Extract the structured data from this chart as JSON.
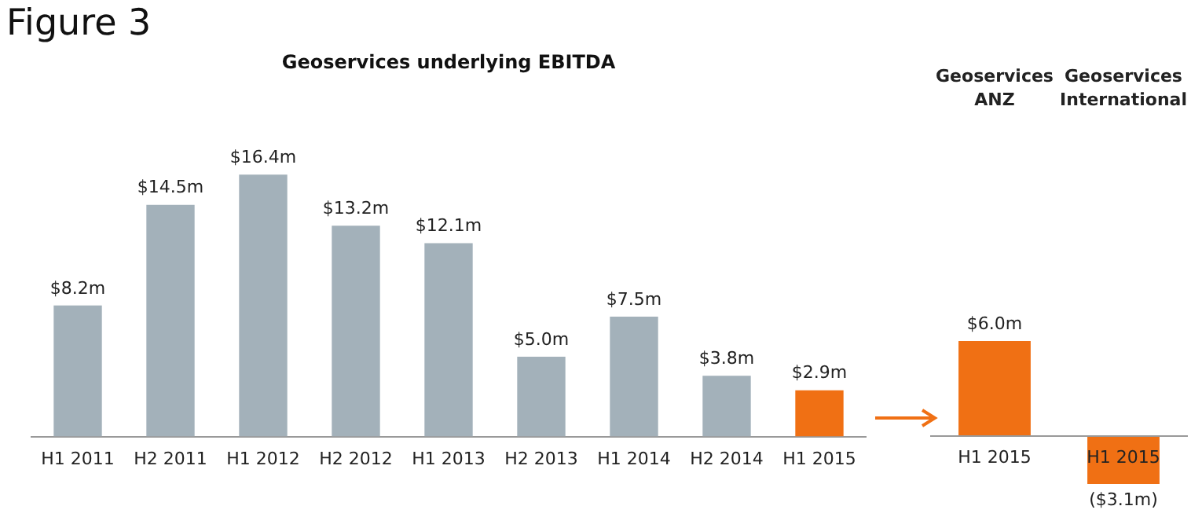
{
  "chart_data": [
    {
      "type": "bar",
      "title": "Geoservices underlying EBITDA",
      "annotations": [
        "Figure 3"
      ],
      "categories": [
        "H1 2011",
        "H2 2011",
        "H1 2012",
        "H2 2012",
        "H1 2013",
        "H2 2013",
        "H1 2014",
        "H2 2014",
        "H1 2015"
      ],
      "values": [
        8.2,
        14.5,
        16.4,
        13.2,
        12.1,
        5.0,
        7.5,
        3.8,
        2.9
      ],
      "colors": [
        "#a3b1ba",
        "#a3b1ba",
        "#a3b1ba",
        "#a3b1ba",
        "#a3b1ba",
        "#a3b1ba",
        "#a3b1ba",
        "#a3b1ba",
        "#f07014"
      ],
      "value_labels": [
        "$8.2m",
        "$14.5m",
        "$16.4m",
        "$13.2m",
        "$12.1m",
        "$5.0m",
        "$7.5m",
        "$3.8m",
        "$2.9m"
      ]
    },
    {
      "type": "bar",
      "categories": [
        "H1 2015",
        "H1 2015"
      ],
      "annotations": [
        "Geoservices ANZ",
        "Geoservices International"
      ],
      "values": [
        6.0,
        -3.1
      ],
      "color": "#f07014",
      "value_labels": [
        "$6.0m",
        "($3.1m)"
      ]
    }
  ]
}
